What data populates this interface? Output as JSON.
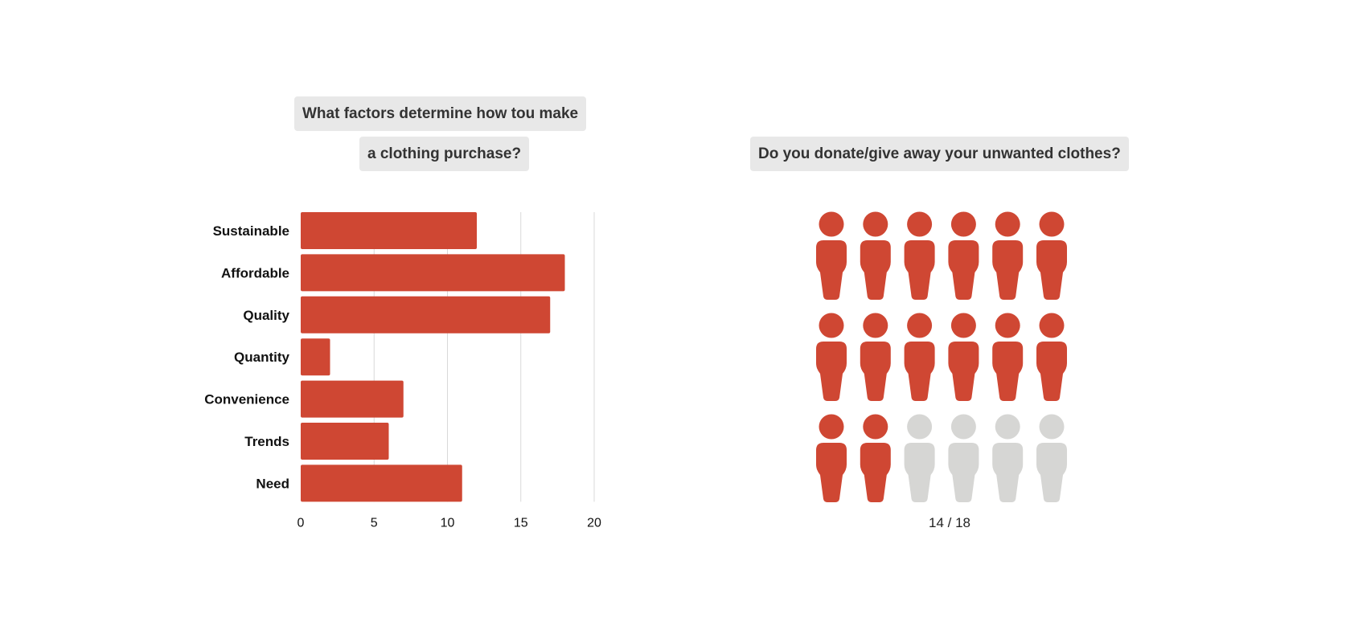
{
  "colors": {
    "accent": "#cf4733",
    "inactive": "#d6d6d4",
    "grid": "#d9d9d9",
    "title_bg": "#e8e8e8"
  },
  "chart_data": [
    {
      "type": "bar",
      "orientation": "horizontal",
      "title_line1": "What factors determine how tou make",
      "title_line2": "a clothing purchase?",
      "categories": [
        "Sustainable",
        "Affordable",
        "Quality",
        "Quantity",
        "Convenience",
        "Trends",
        "Need"
      ],
      "values": [
        12,
        18,
        17,
        2,
        7,
        6,
        11
      ],
      "xlim": [
        0,
        20
      ],
      "xticks": [
        "0",
        "5",
        "10",
        "15",
        "20"
      ],
      "grid": true
    },
    {
      "type": "pictogram",
      "title": "Do you donate/give away your unwanted clothes?",
      "value": 14,
      "total": 18,
      "icon": "person-icon",
      "label": "14 / 18"
    }
  ]
}
